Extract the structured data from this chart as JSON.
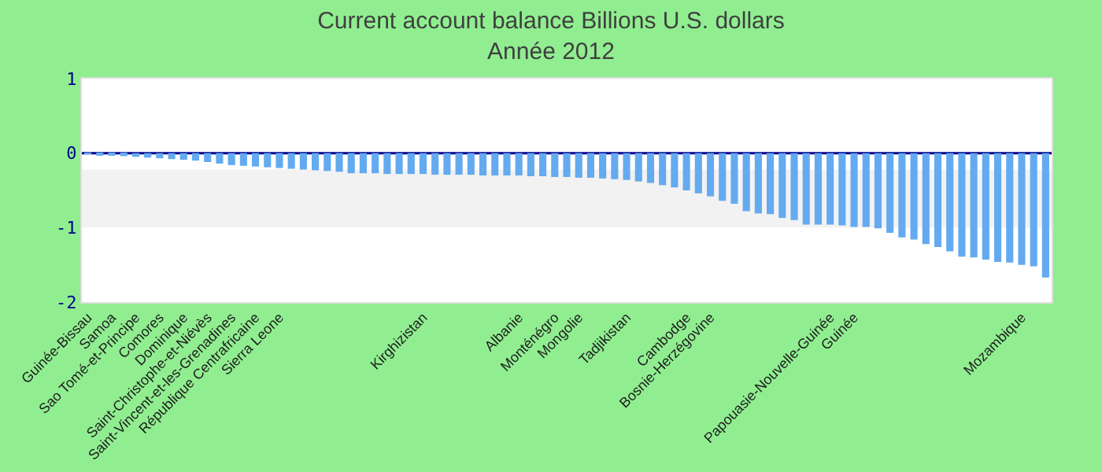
{
  "chart_data": {
    "type": "bar",
    "title": "Current account balance Billions U.S. dollars",
    "subtitle": "Année 2012",
    "categories": [
      "Guinée-Bissau",
      null,
      "Samoa",
      null,
      "Sao Tomé-et-Principe",
      null,
      "Comores",
      null,
      "Dominique",
      null,
      "Saint-Christophe-et-Niévès",
      null,
      "Saint-Vincent-et-les-Grenadines",
      null,
      "République Centrafricaine",
      null,
      "Sierra Leone",
      null,
      null,
      null,
      null,
      null,
      null,
      null,
      null,
      null,
      null,
      null,
      "Kirghizistan",
      null,
      null,
      null,
      null,
      null,
      null,
      null,
      "Albanie",
      null,
      null,
      "Monténégro",
      null,
      "Mongolie",
      null,
      null,
      null,
      "Tadjikistan",
      null,
      null,
      null,
      null,
      "Cambodge",
      null,
      "Bosnie-Herzégovine",
      null,
      null,
      null,
      null,
      null,
      null,
      null,
      null,
      null,
      "Papouasie-Nouvelle-Guinée",
      null,
      "Guinée",
      null,
      null,
      null,
      null,
      null,
      null,
      null,
      null,
      null,
      null,
      null,
      null,
      null,
      "Mozambique",
      null,
      null
    ],
    "values": [
      -0.01,
      -0.02,
      -0.03,
      -0.04,
      -0.05,
      -0.06,
      -0.07,
      -0.08,
      -0.09,
      -0.1,
      -0.12,
      -0.14,
      -0.16,
      -0.17,
      -0.18,
      -0.19,
      -0.2,
      -0.21,
      -0.22,
      -0.23,
      -0.24,
      -0.25,
      -0.27,
      -0.27,
      -0.27,
      -0.28,
      -0.28,
      -0.28,
      -0.28,
      -0.29,
      -0.29,
      -0.29,
      -0.29,
      -0.3,
      -0.3,
      -0.3,
      -0.3,
      -0.31,
      -0.31,
      -0.32,
      -0.32,
      -0.33,
      -0.33,
      -0.34,
      -0.35,
      -0.36,
      -0.38,
      -0.4,
      -0.43,
      -0.46,
      -0.5,
      -0.54,
      -0.58,
      -0.64,
      -0.68,
      -0.78,
      -0.81,
      -0.82,
      -0.87,
      -0.9,
      -0.96,
      -0.96,
      -0.96,
      -0.97,
      -0.99,
      -0.99,
      -1.01,
      -1.07,
      -1.13,
      -1.16,
      -1.22,
      -1.26,
      -1.32,
      -1.39,
      -1.4,
      -1.43,
      -1.46,
      -1.47,
      -1.5,
      -1.52,
      -1.67
    ],
    "color": "#64aaf0",
    "ylim": [
      -2,
      1
    ],
    "yticks": [
      -2,
      -1,
      0,
      1
    ],
    "bands": [
      {
        "axis": "y",
        "from": -1,
        "to": -0.22,
        "color": "#f2f2f2"
      }
    ],
    "ref_lines": [
      {
        "axis": "y",
        "value": 0,
        "color": "#00008b"
      }
    ]
  }
}
